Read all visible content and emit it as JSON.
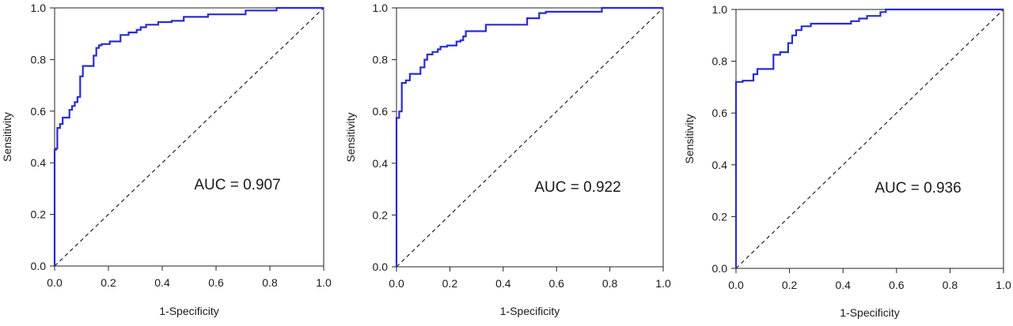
{
  "chart_data": [
    {
      "type": "line",
      "xlabel": "1-Specificity",
      "ylabel": "Sensitivity",
      "xlim": [
        0,
        1
      ],
      "ylim": [
        0,
        1
      ],
      "xticks": [
        "0.0",
        "0.2",
        "0.4",
        "0.6",
        "0.8",
        "1.0"
      ],
      "yticks": [
        "0.0",
        "0.2",
        "0.4",
        "0.6",
        "0.8",
        "1.0"
      ],
      "annotation": "AUC = 0.907",
      "reference_line": {
        "x": [
          0,
          1
        ],
        "y": [
          0,
          1
        ],
        "style": "dashed"
      },
      "series": [
        {
          "color": "#2b2bd1",
          "x": [
            0.0,
            0.0,
            0.005,
            0.005,
            0.01,
            0.01,
            0.02,
            0.02,
            0.03,
            0.03,
            0.055,
            0.055,
            0.065,
            0.065,
            0.075,
            0.075,
            0.085,
            0.085,
            0.095,
            0.095,
            0.105,
            0.105,
            0.145,
            0.145,
            0.155,
            0.155,
            0.165,
            0.165,
            0.175,
            0.175,
            0.205,
            0.205,
            0.245,
            0.245,
            0.275,
            0.275,
            0.305,
            0.305,
            0.32,
            0.32,
            0.34,
            0.34,
            0.385,
            0.385,
            0.435,
            0.435,
            0.48,
            0.48,
            0.57,
            0.57,
            0.71,
            0.71,
            0.825,
            0.825,
            1.0
          ],
          "y": [
            0.0,
            0.45,
            0.45,
            0.455,
            0.455,
            0.535,
            0.535,
            0.55,
            0.55,
            0.575,
            0.575,
            0.605,
            0.605,
            0.62,
            0.62,
            0.635,
            0.635,
            0.655,
            0.655,
            0.735,
            0.735,
            0.775,
            0.775,
            0.815,
            0.815,
            0.845,
            0.845,
            0.855,
            0.855,
            0.86,
            0.86,
            0.87,
            0.87,
            0.895,
            0.895,
            0.905,
            0.905,
            0.915,
            0.915,
            0.925,
            0.925,
            0.935,
            0.935,
            0.945,
            0.945,
            0.95,
            0.95,
            0.965,
            0.965,
            0.975,
            0.975,
            0.99,
            0.99,
            1.0,
            1.0
          ]
        }
      ]
    },
    {
      "type": "line",
      "xlabel": "1-Specificity",
      "ylabel": "Sensitivity",
      "xlim": [
        0,
        1
      ],
      "ylim": [
        0,
        1
      ],
      "xticks": [
        "0.0",
        "0.2",
        "0.4",
        "0.6",
        "0.8",
        "1.0"
      ],
      "yticks": [
        "0.0",
        "0.2",
        "0.4",
        "0.6",
        "0.8",
        "1.0"
      ],
      "annotation": "AUC = 0.922",
      "reference_line": {
        "x": [
          0,
          1
        ],
        "y": [
          0,
          1
        ],
        "style": "dashed"
      },
      "series": [
        {
          "color": "#2b2bd1",
          "x": [
            0.0,
            0.0,
            0.01,
            0.01,
            0.02,
            0.02,
            0.035,
            0.035,
            0.05,
            0.05,
            0.09,
            0.09,
            0.105,
            0.105,
            0.115,
            0.115,
            0.135,
            0.135,
            0.155,
            0.155,
            0.165,
            0.165,
            0.19,
            0.19,
            0.225,
            0.225,
            0.24,
            0.24,
            0.25,
            0.25,
            0.26,
            0.26,
            0.335,
            0.335,
            0.49,
            0.49,
            0.535,
            0.535,
            0.56,
            0.56,
            0.77,
            0.77,
            1.0
          ],
          "y": [
            0.0,
            0.575,
            0.575,
            0.6,
            0.6,
            0.71,
            0.71,
            0.72,
            0.72,
            0.745,
            0.745,
            0.77,
            0.77,
            0.8,
            0.8,
            0.82,
            0.82,
            0.83,
            0.83,
            0.84,
            0.84,
            0.85,
            0.85,
            0.855,
            0.855,
            0.87,
            0.87,
            0.875,
            0.875,
            0.89,
            0.89,
            0.91,
            0.91,
            0.935,
            0.935,
            0.96,
            0.96,
            0.98,
            0.98,
            0.985,
            0.985,
            1.0,
            1.0
          ]
        }
      ]
    },
    {
      "type": "line",
      "xlabel": "1-Specificity",
      "ylabel": "Sensitivity",
      "xlim": [
        0,
        1
      ],
      "ylim": [
        0,
        1
      ],
      "xticks": [
        "0.0",
        "0.2",
        "0.4",
        "0.6",
        "0.8",
        "1.0"
      ],
      "yticks": [
        "0.0",
        "0.2",
        "0.4",
        "0.6",
        "0.8",
        "1.0"
      ],
      "annotation": "AUC = 0.936",
      "reference_line": {
        "x": [
          0,
          1
        ],
        "y": [
          0,
          1
        ],
        "style": "dashed"
      },
      "series": [
        {
          "color": "#2b2bd1",
          "x": [
            0.0,
            0.0,
            0.025,
            0.025,
            0.065,
            0.065,
            0.08,
            0.08,
            0.14,
            0.14,
            0.165,
            0.165,
            0.195,
            0.195,
            0.21,
            0.21,
            0.225,
            0.225,
            0.245,
            0.245,
            0.28,
            0.28,
            0.43,
            0.43,
            0.46,
            0.46,
            0.49,
            0.49,
            0.54,
            0.54,
            0.56,
            0.56,
            1.0
          ],
          "y": [
            0.0,
            0.72,
            0.72,
            0.725,
            0.725,
            0.75,
            0.75,
            0.77,
            0.77,
            0.825,
            0.825,
            0.835,
            0.835,
            0.87,
            0.87,
            0.9,
            0.9,
            0.92,
            0.92,
            0.935,
            0.935,
            0.945,
            0.945,
            0.955,
            0.955,
            0.965,
            0.965,
            0.975,
            0.975,
            0.99,
            0.99,
            1.0,
            1.0
          ]
        }
      ]
    }
  ]
}
